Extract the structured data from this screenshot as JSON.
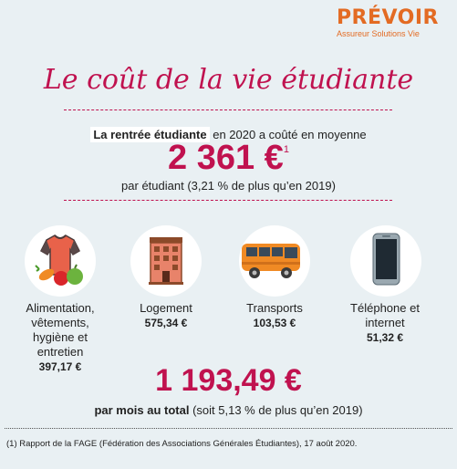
{
  "logo": {
    "brand": "PRÉVOIR",
    "tagline": "Assureur Solutions Vie",
    "brand_color": "#e36b23"
  },
  "title": "Le coût de la vie étudiante",
  "intro": {
    "highlight": "La rentrée étudiante",
    "rest": " en 2020 a coûté en moyenne"
  },
  "main_amount": {
    "value": "2 361 €",
    "note_ref": "1"
  },
  "main_sub": "par étudiant (3,21 % de plus qu’en 2019)",
  "categories": [
    {
      "icon": "shirt-food-icon",
      "label": "Alimentation, vêtements, hygiène et entretien",
      "value": "397,17 €"
    },
    {
      "icon": "building-icon",
      "label": "Logement",
      "value": "575,34 €"
    },
    {
      "icon": "bus-icon",
      "label": "Transports",
      "value": "103,53 €"
    },
    {
      "icon": "smartphone-icon",
      "label": "Téléphone et internet",
      "value": "51,32 €"
    }
  ],
  "total": {
    "value": "1 193,49 €",
    "bold": "par mois au total",
    "rest": " (soit 5,13 % de plus qu’en 2019)"
  },
  "footnote": "(1) Rapport de la FAGE (Fédération des Associations Générales Étudiantes), 17 août 2020.",
  "colors": {
    "accent": "#c0124f",
    "background": "#e9f0f3"
  }
}
